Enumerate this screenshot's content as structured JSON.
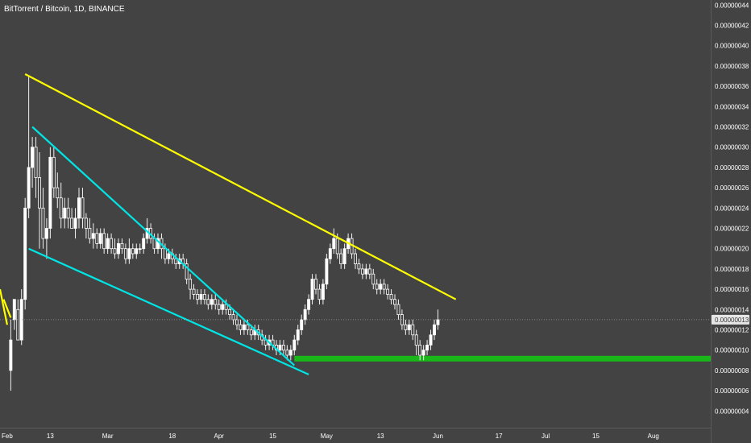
{
  "title": "BitTorrent / Bitcoin, 1D, BINANCE",
  "chart_data": {
    "type": "candlestick",
    "symbol": "BitTorrent / Bitcoin",
    "interval": "1D",
    "exchange": "BINANCE",
    "last_price": "0.00000013",
    "y_tick_labels": [
      "0.00000004",
      "0.00000006",
      "0.00000008",
      "0.00000010",
      "0.00000012",
      "0.00000014",
      "0.00000016",
      "0.00000018",
      "0.00000020",
      "0.00000022",
      "0.00000024",
      "0.00000026",
      "0.00000028",
      "0.00000030",
      "0.00000032",
      "0.00000034",
      "0.00000036",
      "0.00000038",
      "0.00000040",
      "0.00000042",
      "0.00000044"
    ],
    "x_tick_labels": [
      "Feb",
      "13",
      "Mar",
      "18",
      "Apr",
      "15",
      "May",
      "13",
      "Jun",
      "17",
      "Jul",
      "15",
      "Aug"
    ],
    "x_tick_days": [
      0,
      12,
      28,
      46,
      59,
      74,
      89,
      104,
      120,
      137,
      150,
      164,
      180
    ],
    "ylim": [
      3.5e-08,
      4.45e-08
    ],
    "xlim": [
      -2,
      196
    ],
    "grid": false,
    "series": [
      {
        "values": [
          [
            1,
            8,
            11,
            6,
            13
          ],
          [
            2,
            13,
            15,
            12,
            14
          ],
          [
            3,
            14,
            11,
            15,
            13
          ],
          [
            4,
            11,
            15,
            10.5,
            16
          ],
          [
            5,
            15,
            24,
            14,
            25
          ],
          [
            6,
            24,
            28,
            23,
            37
          ],
          [
            7,
            28,
            30,
            26,
            31
          ],
          [
            8,
            30,
            27,
            25,
            31
          ],
          [
            9,
            27,
            24,
            20,
            29.5
          ],
          [
            10,
            24,
            21,
            20,
            26
          ],
          [
            11,
            21,
            22,
            19,
            23
          ],
          [
            12,
            22,
            29,
            21,
            30
          ],
          [
            13,
            29,
            26,
            25,
            30
          ],
          [
            14,
            26,
            25,
            24,
            27.5
          ],
          [
            15,
            25,
            23,
            22,
            26.5
          ],
          [
            16,
            23,
            24,
            22,
            25
          ],
          [
            17,
            24,
            23,
            22,
            25
          ],
          [
            18,
            23,
            22,
            22,
            24
          ],
          [
            19,
            22,
            23,
            21,
            24
          ],
          [
            20,
            23,
            25,
            22,
            26
          ],
          [
            21,
            25,
            23,
            22,
            26
          ],
          [
            22,
            23,
            22,
            21,
            23.5
          ],
          [
            23,
            22,
            21,
            20.5,
            23
          ],
          [
            24,
            21,
            21.5,
            20,
            22.5
          ],
          [
            25,
            21.5,
            20.5,
            20,
            22
          ],
          [
            26,
            20.5,
            21.5,
            20,
            22
          ],
          [
            27,
            21.5,
            20,
            19.5,
            22
          ],
          [
            28,
            20,
            21,
            19.5,
            21.5
          ],
          [
            29,
            21,
            20,
            19.5,
            21.5
          ],
          [
            30,
            20,
            19.5,
            19,
            21
          ],
          [
            31,
            19.5,
            20.5,
            19,
            21
          ],
          [
            32,
            20.5,
            20,
            19.5,
            21
          ],
          [
            33,
            20,
            19,
            18.5,
            20.5
          ],
          [
            34,
            19,
            20,
            18.5,
            21
          ],
          [
            35,
            20,
            19.5,
            19,
            20.5
          ],
          [
            36,
            19.5,
            20,
            19,
            20.5
          ],
          [
            37,
            20,
            20,
            19.5,
            20.5
          ],
          [
            38,
            20,
            21,
            19.5,
            21.5
          ],
          [
            39,
            21,
            22,
            20.5,
            23
          ],
          [
            40,
            22,
            21,
            20.5,
            22.5
          ],
          [
            41,
            21,
            20,
            19.5,
            21.5
          ],
          [
            42,
            20,
            21,
            19.5,
            21.5
          ],
          [
            43,
            21,
            20,
            19,
            21.5
          ],
          [
            44,
            20,
            19,
            18.5,
            20.5
          ],
          [
            45,
            19,
            19.5,
            18.5,
            20
          ],
          [
            46,
            19.5,
            19,
            18.5,
            20
          ],
          [
            47,
            19,
            18.5,
            18,
            19.5
          ],
          [
            48,
            18.5,
            19,
            18,
            19.5
          ],
          [
            49,
            19,
            18.5,
            18,
            19.5
          ],
          [
            50,
            18.5,
            17,
            16.5,
            19
          ],
          [
            51,
            17,
            16,
            15,
            17.5
          ],
          [
            52,
            16,
            15.5,
            15,
            16.5
          ],
          [
            53,
            15.5,
            15,
            14.5,
            16
          ],
          [
            54,
            15,
            15.5,
            14.5,
            16
          ],
          [
            55,
            15.5,
            15,
            14.5,
            16
          ],
          [
            56,
            15,
            14.5,
            14,
            15.5
          ],
          [
            57,
            14.5,
            15,
            14,
            15.5
          ],
          [
            58,
            15,
            14.5,
            14,
            15.5
          ],
          [
            59,
            14.5,
            14,
            13.5,
            15
          ],
          [
            60,
            14,
            14.5,
            13.5,
            15
          ],
          [
            61,
            14.5,
            14,
            13.5,
            15
          ],
          [
            62,
            14,
            13.5,
            13,
            14.5
          ],
          [
            63,
            13.5,
            13,
            12.5,
            14
          ],
          [
            64,
            13,
            12.5,
            12,
            13.5
          ],
          [
            65,
            12.5,
            12,
            11.5,
            13
          ],
          [
            66,
            12,
            12.5,
            11.5,
            13
          ],
          [
            67,
            12.5,
            12,
            11.5,
            13
          ],
          [
            68,
            12,
            11.5,
            11,
            12.5
          ],
          [
            69,
            11.5,
            12,
            11,
            12.5
          ],
          [
            70,
            12,
            11.5,
            11,
            12.5
          ],
          [
            71,
            11.5,
            11,
            10.5,
            12
          ],
          [
            72,
            11,
            10.5,
            10,
            11.5
          ],
          [
            73,
            10.5,
            11,
            10,
            11.5
          ],
          [
            74,
            11,
            10.5,
            10,
            11.5
          ],
          [
            75,
            10.5,
            10,
            9.5,
            11
          ],
          [
            76,
            10,
            10.5,
            9.5,
            11
          ],
          [
            77,
            10.5,
            10,
            9.5,
            11
          ],
          [
            78,
            10,
            9.5,
            9,
            10.5
          ],
          [
            79,
            9.5,
            10,
            9,
            10.5
          ],
          [
            80,
            10,
            11,
            9.5,
            11.5
          ],
          [
            81,
            11,
            12,
            10.5,
            12.5
          ],
          [
            82,
            12,
            13,
            11.5,
            13.5
          ],
          [
            83,
            13,
            14,
            12.5,
            14.5
          ],
          [
            84,
            14,
            15,
            13.5,
            15.5
          ],
          [
            85,
            15,
            17,
            14.5,
            17.5
          ],
          [
            86,
            17,
            16,
            15.5,
            17.5
          ],
          [
            87,
            16,
            15,
            14.5,
            16.5
          ],
          [
            88,
            15,
            16.5,
            14.5,
            17
          ],
          [
            89,
            16.5,
            19,
            16,
            19.5
          ],
          [
            90,
            19,
            20,
            18.5,
            20.5
          ],
          [
            91,
            20,
            21,
            19.5,
            22
          ],
          [
            92,
            21,
            19.5,
            19,
            21.5
          ],
          [
            93,
            19.5,
            18.5,
            18,
            20
          ],
          [
            94,
            18.5,
            20,
            18,
            20.5
          ],
          [
            95,
            20,
            21,
            19.5,
            21.5
          ],
          [
            96,
            21,
            19.5,
            19,
            21.5
          ],
          [
            97,
            19.5,
            18.5,
            18,
            20
          ],
          [
            98,
            18.5,
            18,
            17.5,
            19
          ],
          [
            99,
            18,
            17.5,
            17,
            18.5
          ],
          [
            100,
            17.5,
            18,
            17,
            18.5
          ],
          [
            101,
            18,
            17.5,
            17,
            18.5
          ],
          [
            102,
            17.5,
            16.5,
            16,
            18
          ],
          [
            103,
            16.5,
            16,
            15.5,
            17
          ],
          [
            104,
            16,
            16.5,
            15.5,
            17
          ],
          [
            105,
            16.5,
            16,
            15.5,
            17
          ],
          [
            106,
            16,
            15.5,
            15,
            16.5
          ],
          [
            107,
            15.5,
            15,
            14.5,
            16
          ],
          [
            108,
            15,
            14.5,
            14,
            15.5
          ],
          [
            109,
            14.5,
            13.5,
            13,
            15
          ],
          [
            110,
            13.5,
            12.5,
            12,
            14
          ],
          [
            111,
            12.5,
            12,
            11.5,
            13
          ],
          [
            112,
            12,
            12.5,
            11.5,
            13
          ],
          [
            113,
            12.5,
            11.5,
            11,
            13
          ],
          [
            114,
            11.5,
            10.5,
            9.5,
            12
          ],
          [
            115,
            10.5,
            9.5,
            9,
            11
          ],
          [
            116,
            9.5,
            10,
            9,
            10.5
          ],
          [
            117,
            10,
            10.5,
            9.5,
            11
          ],
          [
            118,
            10.5,
            11.5,
            10,
            12
          ],
          [
            119,
            11.5,
            12.5,
            11,
            13
          ],
          [
            120,
            12.5,
            13,
            12,
            14
          ]
        ]
      }
    ],
    "trendlines": [
      {
        "color": "#FFFF00",
        "points": [
          [
            5,
            37.2
          ],
          [
            125,
            15
          ]
        ]
      },
      {
        "color": "#00E5E5",
        "points": [
          [
            7,
            32
          ],
          [
            80,
            8.5
          ]
        ]
      },
      {
        "color": "#00E5E5",
        "points": [
          [
            6,
            20
          ],
          [
            84,
            7.6
          ]
        ]
      },
      {
        "color": "#FFFF00",
        "points": [
          [
            -2,
            16
          ],
          [
            0,
            12.5
          ]
        ]
      },
      {
        "color": "#FFFF00",
        "points": [
          [
            -1,
            15
          ],
          [
            1,
            13.2
          ]
        ]
      }
    ],
    "support_zone": {
      "color": "#1AB71A",
      "from_day": 80,
      "y": 9.2
    }
  }
}
